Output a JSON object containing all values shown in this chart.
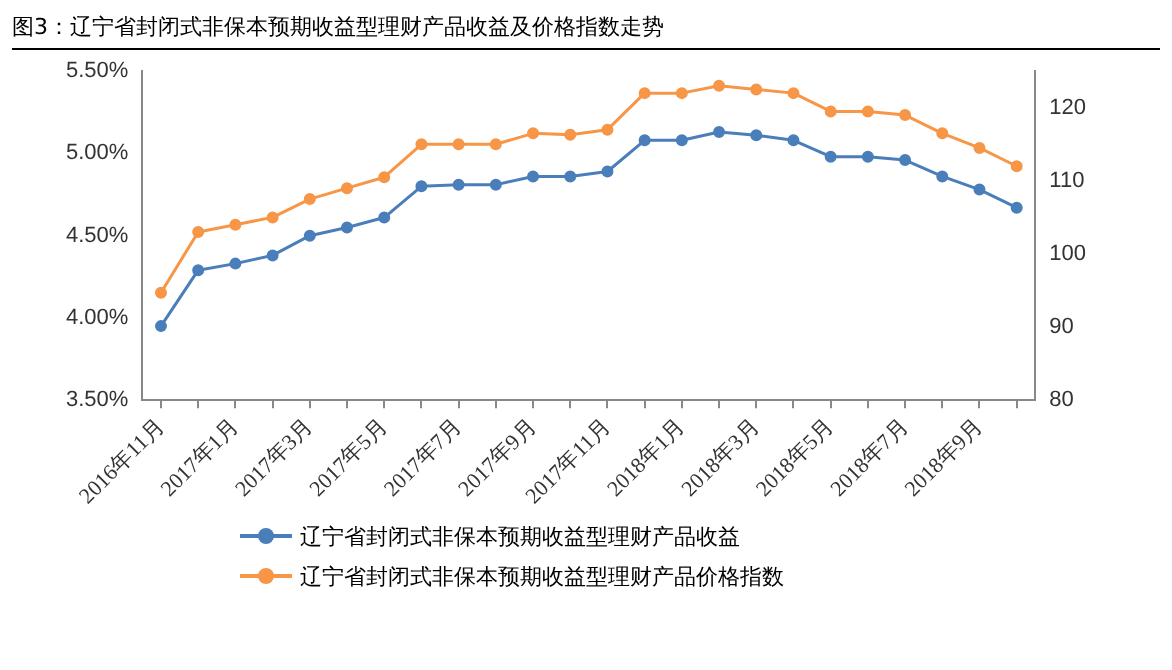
{
  "chart_data": {
    "type": "line",
    "title": "图3：辽宁省封闭式非保本预期收益型理财产品收益及价格指数走势",
    "categories": [
      "2016年11月",
      null,
      "2017年1月",
      null,
      "2017年3月",
      null,
      "2017年5月",
      null,
      "2017年7月",
      null,
      "2017年9月",
      null,
      "2017年11月",
      null,
      "2018年1月",
      null,
      "2018年3月",
      null,
      "2018年5月",
      null,
      "2018年7月",
      null,
      "2018年9月",
      null
    ],
    "series": [
      {
        "name": "辽宁省封闭式非保本预期收益型理财产品收益",
        "color": "#4a7ebb",
        "values": [
          3.95,
          4.29,
          4.33,
          4.38,
          4.5,
          4.55,
          4.61,
          4.8,
          4.81,
          4.81,
          4.86,
          4.86,
          4.89,
          5.08,
          5.08,
          5.13,
          5.11,
          5.08,
          4.98,
          4.98,
          4.96,
          4.86,
          4.78,
          4.67
        ]
      },
      {
        "name": "辽宁省封闭式非保本预期收益型理财产品价格指数",
        "color": "#f79646",
        "axis": "y2",
        "values": [
          94.7,
          103,
          104,
          105,
          107.5,
          109,
          110.5,
          115,
          115,
          115,
          116.5,
          116.3,
          117,
          122,
          122,
          123,
          122.5,
          122,
          119.5,
          119.5,
          119,
          116.5,
          114.5,
          112
        ]
      }
    ],
    "ylim": [
      3.5,
      5.5
    ],
    "yticks": [
      {
        "value": 3.5,
        "label": "3.50%"
      },
      {
        "value": 4,
        "label": "4.00%"
      },
      {
        "value": 4.5,
        "label": "4.50%"
      },
      {
        "value": 5,
        "label": "5.00%"
      },
      {
        "value": 5.5,
        "label": "5.50%"
      }
    ],
    "y2lim": [
      80,
      125
    ],
    "y2ticks": [
      80,
      90,
      100,
      110,
      120
    ],
    "grid": false,
    "legend": "bottom",
    "marker": "circle",
    "line_style": "solid"
  }
}
